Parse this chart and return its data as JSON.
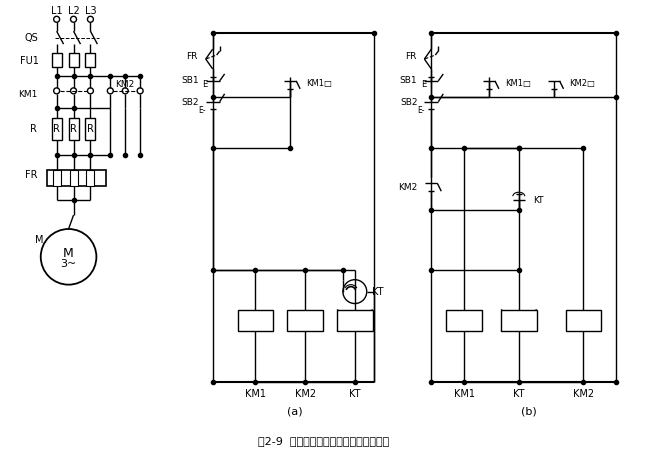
{
  "title": "图2-9  定子电路串电阻降压启动控制线路",
  "bg_color": "#ffffff",
  "fig_width": 6.49,
  "fig_height": 4.57,
  "label_a": "(a)",
  "label_b": "(b)"
}
